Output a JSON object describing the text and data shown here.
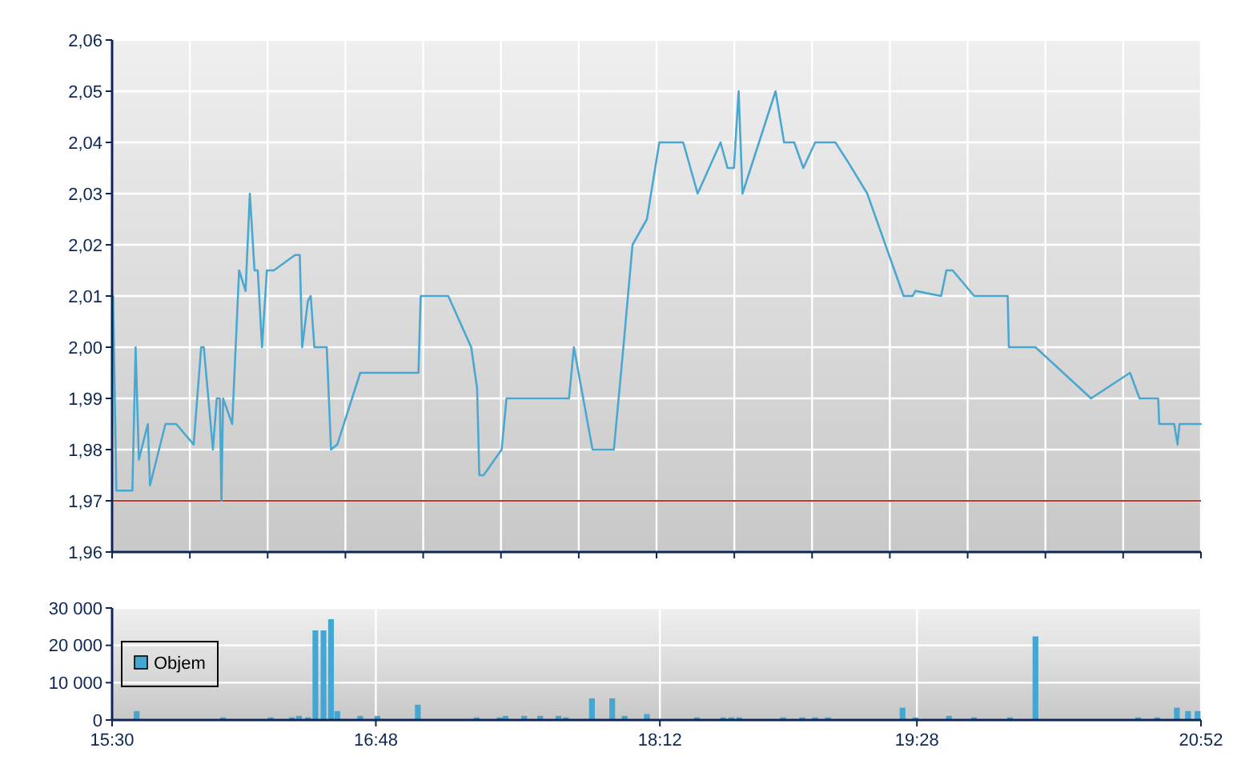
{
  "chart_data": [
    {
      "type": "line",
      "color": "#4aa8d0",
      "x": [
        15.505,
        15.521,
        15.6,
        15.616,
        15.632,
        15.676,
        15.687,
        15.763,
        15.816,
        15.902,
        15.939,
        15.952,
        15.997,
        16.016,
        16.031,
        16.039,
        16.047,
        16.092,
        16.126,
        16.158,
        16.179,
        16.202,
        16.218,
        16.239,
        16.263,
        16.297,
        16.402,
        16.425,
        16.437,
        16.465,
        16.479,
        16.497,
        16.558,
        16.579,
        16.61,
        16.723,
        17.01,
        17.021,
        17.157,
        17.27,
        17.299,
        17.31,
        17.331,
        17.42,
        17.444,
        17.552,
        17.605,
        17.71,
        17.723,
        17.752,
        17.776,
        17.868,
        17.973,
        18.02,
        18.065,
        18.136,
        18.197,
        18.315,
        18.386,
        18.499,
        18.533,
        18.565,
        18.588,
        18.607,
        18.77,
        18.812,
        18.862,
        18.907,
        18.965,
        19.065,
        19.13,
        19.222,
        19.401,
        19.446,
        19.459,
        19.586,
        19.612,
        19.643,
        19.749,
        19.914,
        19.92,
        20.051,
        20.325,
        20.517,
        20.564,
        20.656,
        20.661,
        20.735,
        20.751,
        20.761,
        20.866
      ],
      "values": [
        2.01,
        1.972,
        1.972,
        2.0,
        1.978,
        1.985,
        1.973,
        1.985,
        1.985,
        1.981,
        2.0,
        2.0,
        1.98,
        1.99,
        1.99,
        1.97,
        1.99,
        1.985,
        2.015,
        2.011,
        2.03,
        2.015,
        2.015,
        2.0,
        2.015,
        2.015,
        2.018,
        2.018,
        2.0,
        2.009,
        2.01,
        2.0,
        2.0,
        1.98,
        1.981,
        1.995,
        1.995,
        2.01,
        2.01,
        2.0,
        1.992,
        1.975,
        1.975,
        1.98,
        1.99,
        1.99,
        1.99,
        1.99,
        1.99,
        1.99,
        2.0,
        1.98,
        1.98,
        2.0,
        2.02,
        2.025,
        2.04,
        2.04,
        2.03,
        2.04,
        2.035,
        2.035,
        2.05,
        2.03,
        2.05,
        2.04,
        2.04,
        2.035,
        2.04,
        2.04,
        2.036,
        2.03,
        2.01,
        2.01,
        2.011,
        2.01,
        2.015,
        2.015,
        2.01,
        2.01,
        2.0,
        2.0,
        1.99,
        1.995,
        1.99,
        1.99,
        1.985,
        1.985,
        1.981,
        1.985,
        1.985
      ],
      "xlim": [
        15.5,
        20.8667
      ],
      "xticks": [
        {
          "value": 15.5,
          "label": null
        },
        {
          "value": 15.8833,
          "label": null
        },
        {
          "value": 16.2667,
          "label": null
        },
        {
          "value": 16.65,
          "label": null
        },
        {
          "value": 17.0333,
          "label": null
        },
        {
          "value": 17.4167,
          "label": null
        },
        {
          "value": 17.8,
          "label": null
        },
        {
          "value": 18.1833,
          "label": null
        },
        {
          "value": 18.5667,
          "label": null
        },
        {
          "value": 18.95,
          "label": null
        },
        {
          "value": 19.3333,
          "label": null
        },
        {
          "value": 19.7167,
          "label": null
        },
        {
          "value": 20.1,
          "label": null
        },
        {
          "value": 20.4833,
          "label": null
        },
        {
          "value": 20.8667,
          "label": null
        }
      ],
      "ylim": [
        1.96,
        2.06
      ],
      "yticks": [
        {
          "value": 1.96,
          "label": "1,96"
        },
        {
          "value": 1.97,
          "label": "1,97"
        },
        {
          "value": 1.98,
          "label": "1,98"
        },
        {
          "value": 1.99,
          "label": "1,99"
        },
        {
          "value": 2.0,
          "label": "2,00"
        },
        {
          "value": 2.01,
          "label": "2,01"
        },
        {
          "value": 2.02,
          "label": "2,02"
        },
        {
          "value": 2.03,
          "label": "2,03"
        },
        {
          "value": 2.04,
          "label": "2,04"
        },
        {
          "value": 2.05,
          "label": "2,05"
        },
        {
          "value": 2.06,
          "label": "2,06"
        }
      ],
      "ref_lines": [
        {
          "axis": "y",
          "value": 1.97,
          "color": "#c0392b"
        }
      ],
      "grid": true,
      "tick_labels": "y"
    },
    {
      "type": "bar",
      "x": [
        15.621,
        16.047,
        16.281,
        16.386,
        16.421,
        16.465,
        16.502,
        16.542,
        16.579,
        16.61,
        16.723,
        16.808,
        17.007,
        17.297,
        17.41,
        17.439,
        17.531,
        17.61,
        17.7,
        17.736,
        17.865,
        17.965,
        18.026,
        18.136,
        18.383,
        18.512,
        18.552,
        18.591,
        18.807,
        18.902,
        18.965,
        19.028,
        19.396,
        19.459,
        19.625,
        19.748,
        19.925,
        20.051,
        20.557,
        20.651,
        20.748,
        20.803,
        20.85
      ],
      "series": [
        {
          "name": "Objem",
          "color": "#45a7d1",
          "values": [
            2400,
            700,
            700,
            700,
            1100,
            700,
            24000,
            24000,
            27000,
            2400,
            1100,
            1100,
            4100,
            700,
            700,
            1100,
            1100,
            1100,
            1100,
            700,
            5800,
            5800,
            1100,
            1600,
            700,
            700,
            700,
            700,
            700,
            700,
            700,
            700,
            3300,
            700,
            1100,
            700,
            700,
            22400,
            700,
            700,
            3300,
            2400,
            2400
          ]
        }
      ],
      "xlim": [
        15.5,
        20.8667
      ],
      "xticks": [
        {
          "value": 15.5,
          "label": "15:30"
        },
        {
          "value": 16.8,
          "label": "16:48"
        },
        {
          "value": 18.2,
          "label": "18:12"
        },
        {
          "value": 19.4667,
          "label": "19:28"
        },
        {
          "value": 20.8667,
          "label": "20:52"
        }
      ],
      "ylim": [
        0,
        30000
      ],
      "yticks": [
        {
          "value": 0,
          "label": "0"
        },
        {
          "value": 10000,
          "label": "10 000"
        },
        {
          "value": 20000,
          "label": "20 000"
        },
        {
          "value": 30000,
          "label": "30 000"
        }
      ],
      "grid": true,
      "legend": "left"
    }
  ]
}
